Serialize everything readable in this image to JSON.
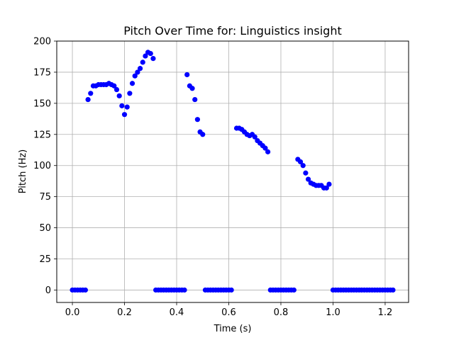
{
  "chart_data": {
    "type": "scatter",
    "title": "Pitch Over Time for: Linguistics insight",
    "xlabel": "Time (s)",
    "ylabel": "Pitch (Hz)",
    "xlim": [
      -0.06,
      1.29
    ],
    "ylim": [
      -10,
      200
    ],
    "xticks": [
      0.0,
      0.2,
      0.4,
      0.6,
      0.8,
      1.0,
      1.2
    ],
    "xtick_labels": [
      "0.0",
      "0.2",
      "0.4",
      "0.6",
      "0.8",
      "1.0",
      "1.2"
    ],
    "yticks": [
      0,
      25,
      50,
      75,
      100,
      125,
      150,
      175,
      200
    ],
    "ytick_labels": [
      "0",
      "25",
      "50",
      "75",
      "100",
      "125",
      "150",
      "175",
      "200"
    ],
    "grid": true,
    "marker_color": "#0000ff",
    "x": [
      0.0,
      0.01,
      0.02,
      0.03,
      0.04,
      0.05,
      0.06,
      0.07,
      0.08,
      0.09,
      0.1,
      0.11,
      0.12,
      0.13,
      0.14,
      0.15,
      0.16,
      0.17,
      0.18,
      0.19,
      0.2,
      0.21,
      0.22,
      0.23,
      0.24,
      0.25,
      0.26,
      0.27,
      0.28,
      0.29,
      0.3,
      0.31,
      0.32,
      0.33,
      0.34,
      0.35,
      0.36,
      0.37,
      0.38,
      0.39,
      0.4,
      0.41,
      0.42,
      0.43,
      0.44,
      0.45,
      0.46,
      0.47,
      0.48,
      0.49,
      0.5,
      0.51,
      0.52,
      0.53,
      0.54,
      0.55,
      0.56,
      0.57,
      0.58,
      0.59,
      0.6,
      0.61,
      0.63,
      0.64,
      0.65,
      0.66,
      0.67,
      0.68,
      0.69,
      0.7,
      0.71,
      0.72,
      0.73,
      0.74,
      0.75,
      0.76,
      0.77,
      0.78,
      0.79,
      0.8,
      0.81,
      0.82,
      0.83,
      0.84,
      0.85,
      0.865,
      0.875,
      0.885,
      0.895,
      0.905,
      0.915,
      0.925,
      0.935,
      0.945,
      0.955,
      0.965,
      0.975,
      0.985,
      1.0,
      1.01,
      1.02,
      1.03,
      1.04,
      1.05,
      1.06,
      1.07,
      1.08,
      1.09,
      1.1,
      1.11,
      1.12,
      1.13,
      1.14,
      1.15,
      1.16,
      1.17,
      1.18,
      1.19,
      1.2,
      1.21,
      1.22,
      1.23
    ],
    "y": [
      0,
      0,
      0,
      0,
      0,
      0,
      153,
      158,
      164,
      164,
      165,
      165,
      165,
      165,
      166,
      165,
      164,
      161,
      156,
      148,
      141,
      147,
      158,
      166,
      172,
      175,
      178,
      183,
      188,
      191,
      190,
      186,
      0,
      0,
      0,
      0,
      0,
      0,
      0,
      0,
      0,
      0,
      0,
      0,
      173,
      164,
      162,
      153,
      137,
      127,
      125,
      0,
      0,
      0,
      0,
      0,
      0,
      0,
      0,
      0,
      0,
      0,
      130,
      130,
      129,
      127,
      125,
      124,
      125,
      123,
      120,
      118,
      116,
      114,
      111,
      0,
      0,
      0,
      0,
      0,
      0,
      0,
      0,
      0,
      0,
      105,
      103,
      100,
      94,
      89,
      86,
      85,
      84,
      84,
      84,
      82,
      82,
      85,
      0,
      0,
      0,
      0,
      0,
      0,
      0,
      0,
      0,
      0,
      0,
      0,
      0,
      0,
      0,
      0,
      0,
      0,
      0,
      0,
      0,
      0,
      0,
      0
    ]
  }
}
